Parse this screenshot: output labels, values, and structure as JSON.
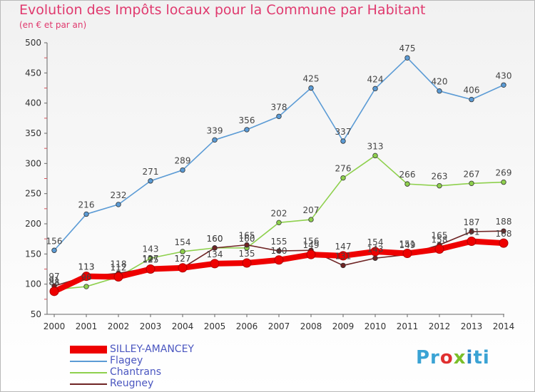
{
  "header": {
    "title": "Evolution des Impôts locaux pour la Commune par Habitant",
    "subtitle": "(en € et par an)"
  },
  "logo": {
    "parts": [
      "Pr",
      "o",
      "x",
      "i",
      "ti"
    ]
  },
  "chart_data": {
    "type": "line",
    "title": "Evolution des Impôts locaux pour la Commune par Habitant",
    "subtitle": "(en € et par an)",
    "xlabel": "",
    "ylabel": "",
    "x": [
      "2000",
      "2001",
      "2002",
      "2003",
      "2004",
      "2005",
      "2006",
      "2007",
      "2008",
      "2009",
      "2010",
      "2011",
      "2012",
      "2013",
      "2014"
    ],
    "yticks": [
      "50",
      "100",
      "150",
      "200",
      "250",
      "300",
      "350",
      "400",
      "450",
      "500"
    ],
    "ylim": [
      50,
      500
    ],
    "grid": false,
    "legend_position": "bottom-left",
    "series": [
      {
        "name": "SILLEY-AMANCEY",
        "color": "#ee0000",
        "values": [
          88,
          113,
          112,
          125,
          127,
          134,
          135,
          140,
          149,
          147,
          154,
          151,
          158,
          171,
          168
        ],
        "labels": [
          "88",
          "113",
          "112",
          "125",
          "127",
          "134",
          "135",
          "140",
          "149",
          "147",
          "154",
          "151",
          "158",
          "171",
          "168"
        ]
      },
      {
        "name": "Flagey",
        "color": "#5b9bd5",
        "values": [
          156,
          216,
          232,
          271,
          289,
          339,
          356,
          378,
          425,
          337,
          424,
          475,
          420,
          406,
          430
        ],
        "labels": [
          "156",
          "216",
          "232",
          "271",
          "289",
          "339",
          "356",
          "378",
          "425",
          "337",
          "424",
          "475",
          "420",
          "406",
          "430"
        ]
      },
      {
        "name": "Chantrans",
        "color": "#8ed04d",
        "values": [
          91,
          96,
          112,
          143,
          154,
          160,
          160,
          202,
          207,
          276,
          313,
          266,
          263,
          267,
          269
        ],
        "labels": [
          "91",
          "96",
          "112",
          "143",
          "154",
          "160",
          "160",
          "202",
          "207",
          "276",
          "313",
          "266",
          "263",
          "267",
          "269"
        ]
      },
      {
        "name": "Reugney",
        "color": "#6e2424",
        "values": [
          97,
          113,
          118,
          127,
          127,
          160,
          165,
          155,
          156,
          131,
          143,
          149,
          165,
          187,
          188
        ],
        "labels": [
          "97",
          "113",
          "118",
          "127",
          "127",
          "160",
          "165",
          "155",
          "156",
          "131",
          "143",
          "149",
          "165",
          "187",
          "188"
        ]
      }
    ]
  }
}
